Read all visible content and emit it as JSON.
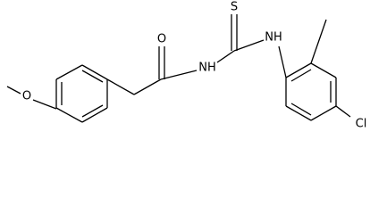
{
  "atoms": [
    "O",
    "O",
    "NH",
    "S",
    "NH",
    "Cl"
  ]
}
